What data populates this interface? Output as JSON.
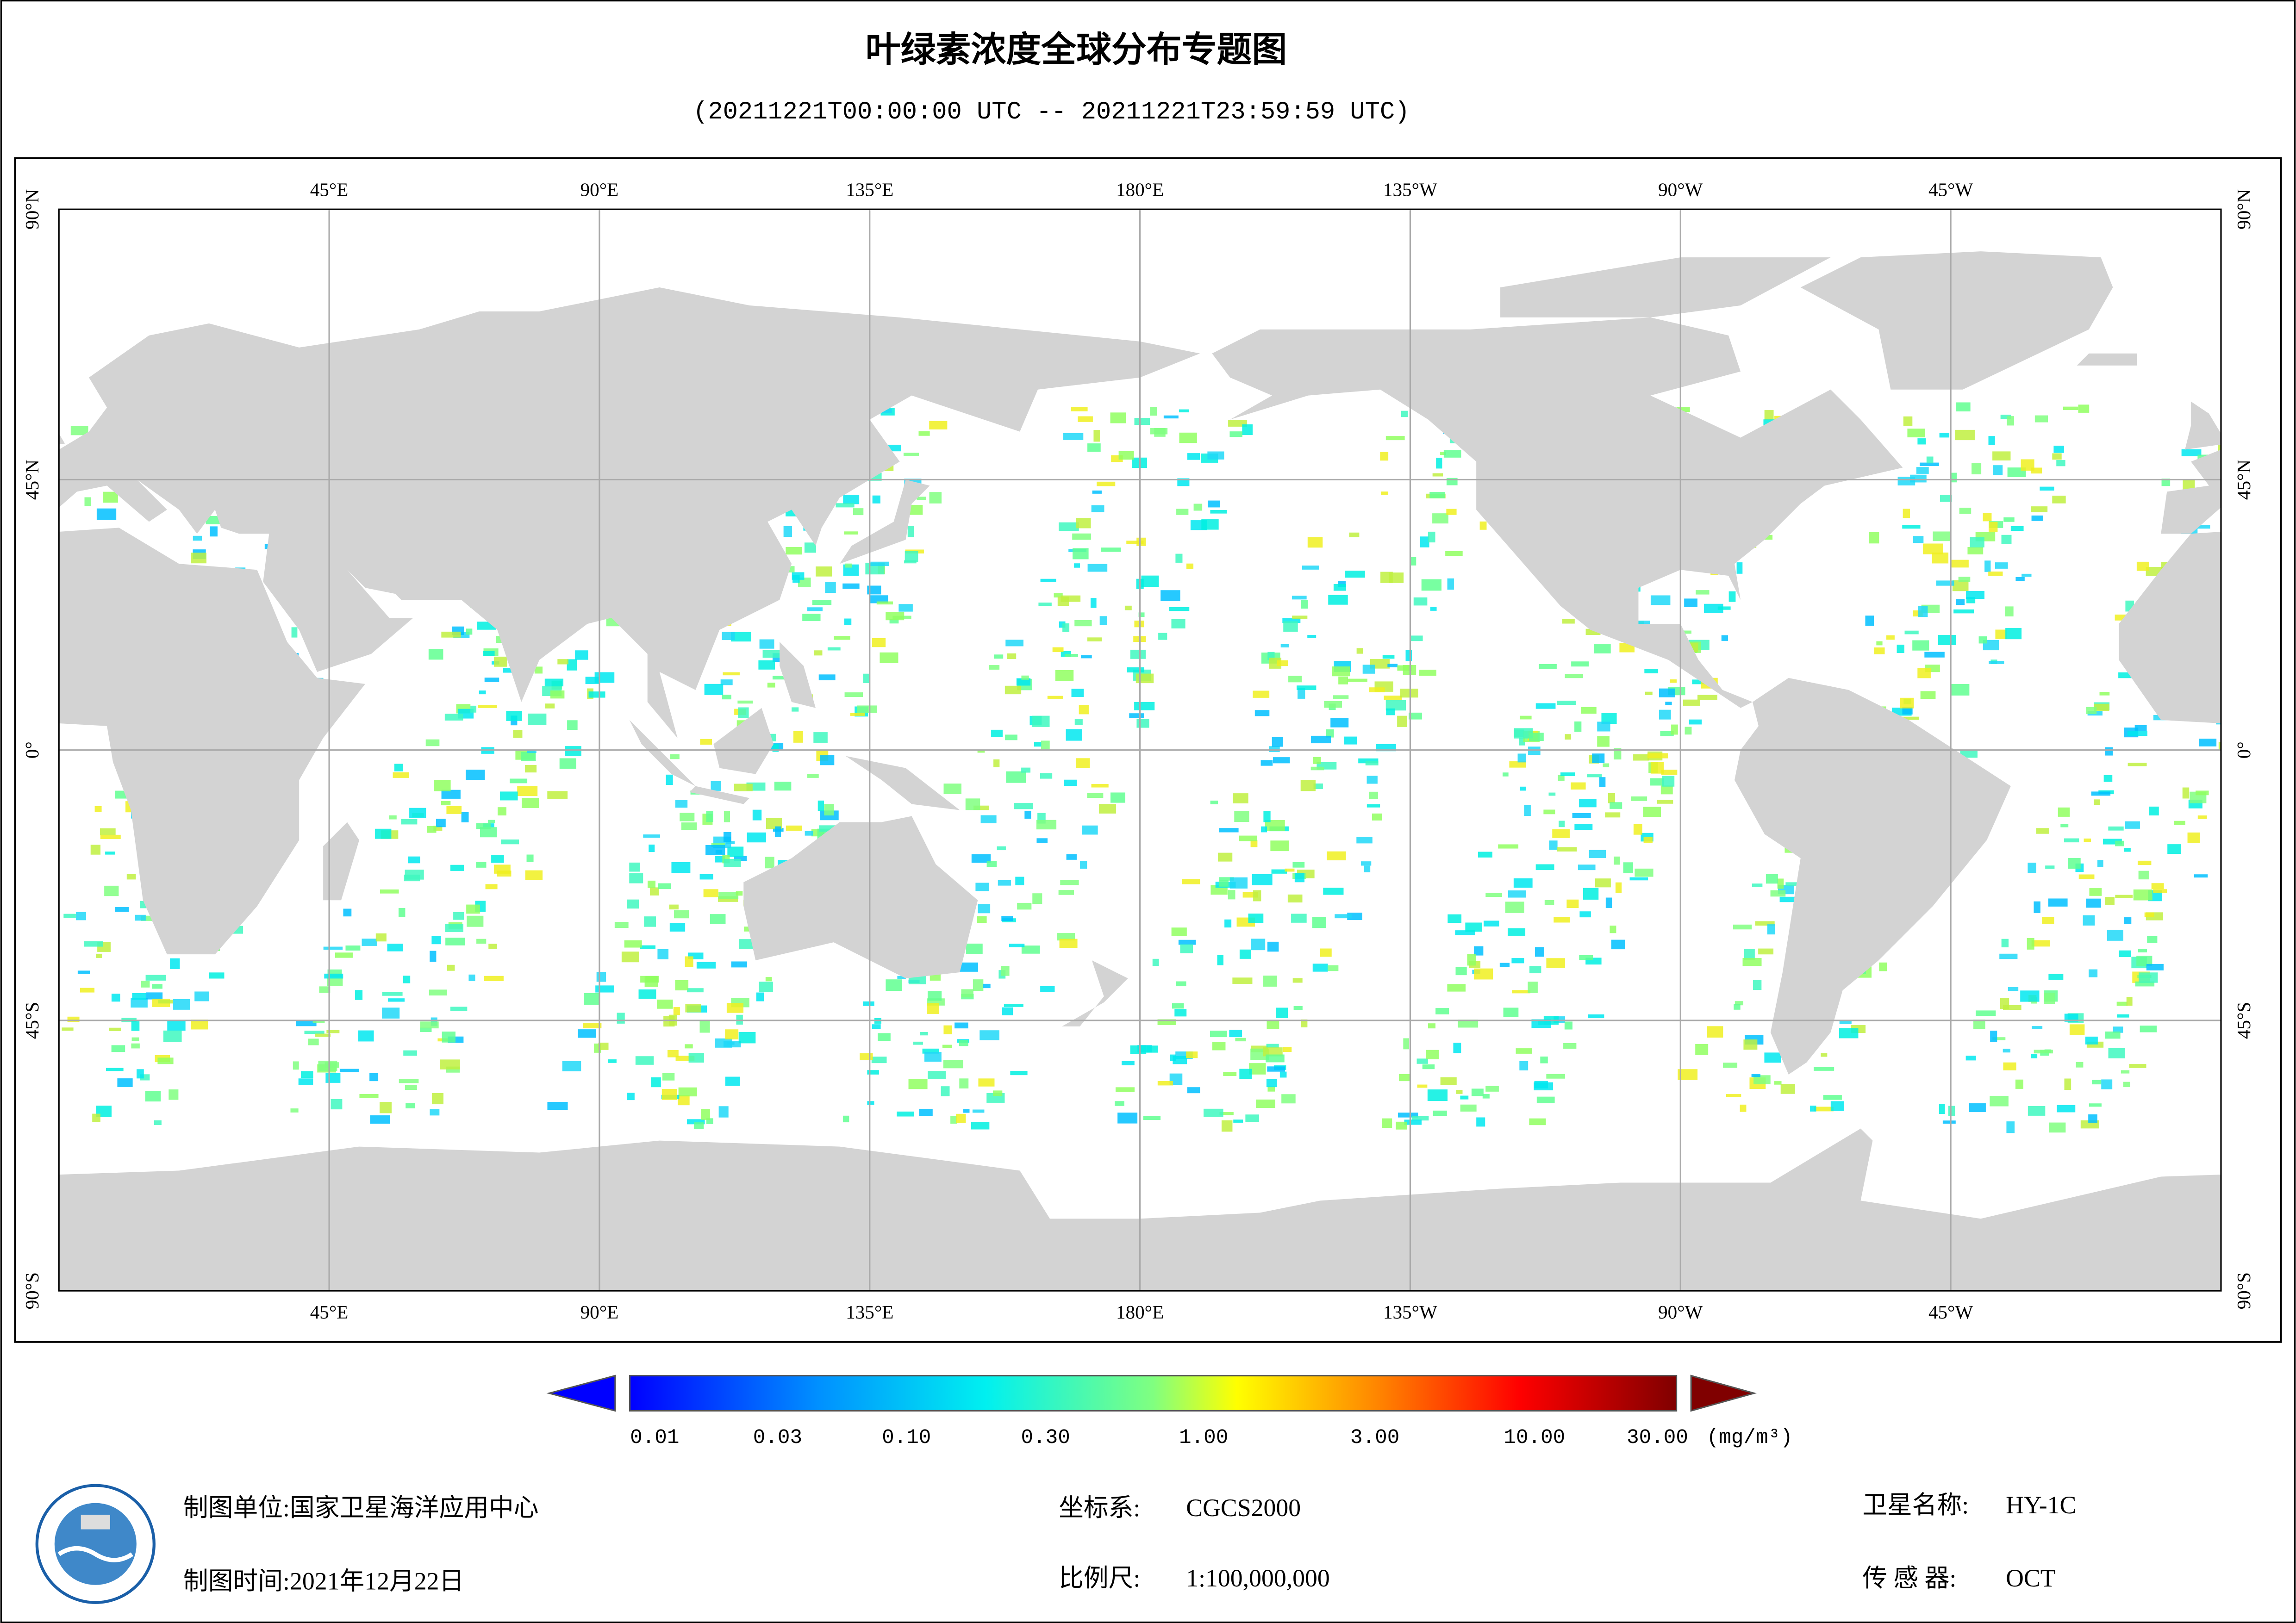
{
  "header": {
    "title": "叶绿素浓度全球分布专题图",
    "subtitle": "(20211221T00:00:00 UTC -- 20211221T23:59:59 UTC)"
  },
  "map": {
    "lon_labels": [
      "45°E",
      "90°E",
      "135°E",
      "180°E",
      "135°W",
      "90°W",
      "45°W"
    ],
    "lat_labels": [
      "90°N",
      "45°N",
      "0°",
      "45°S",
      "90°S"
    ]
  },
  "colorbar": {
    "ticks": [
      "0.01",
      "0.03",
      "0.10",
      "0.30",
      "1.00",
      "3.00",
      "10.00",
      "30.00"
    ],
    "unit": "(mg/m³)"
  },
  "footer": {
    "agency": "制图单位:国家卫星海洋应用中心",
    "date": "制图时间:2021年12月22日",
    "crs_label": "坐标系:",
    "crs": "CGCS2000",
    "scale_label": "比例尺:",
    "scale": "1:100,000,000",
    "satellite_label": "卫星名称:",
    "satellite": "HY-1C",
    "sensor_label": "传 感 器:",
    "sensor": "OCT"
  }
}
